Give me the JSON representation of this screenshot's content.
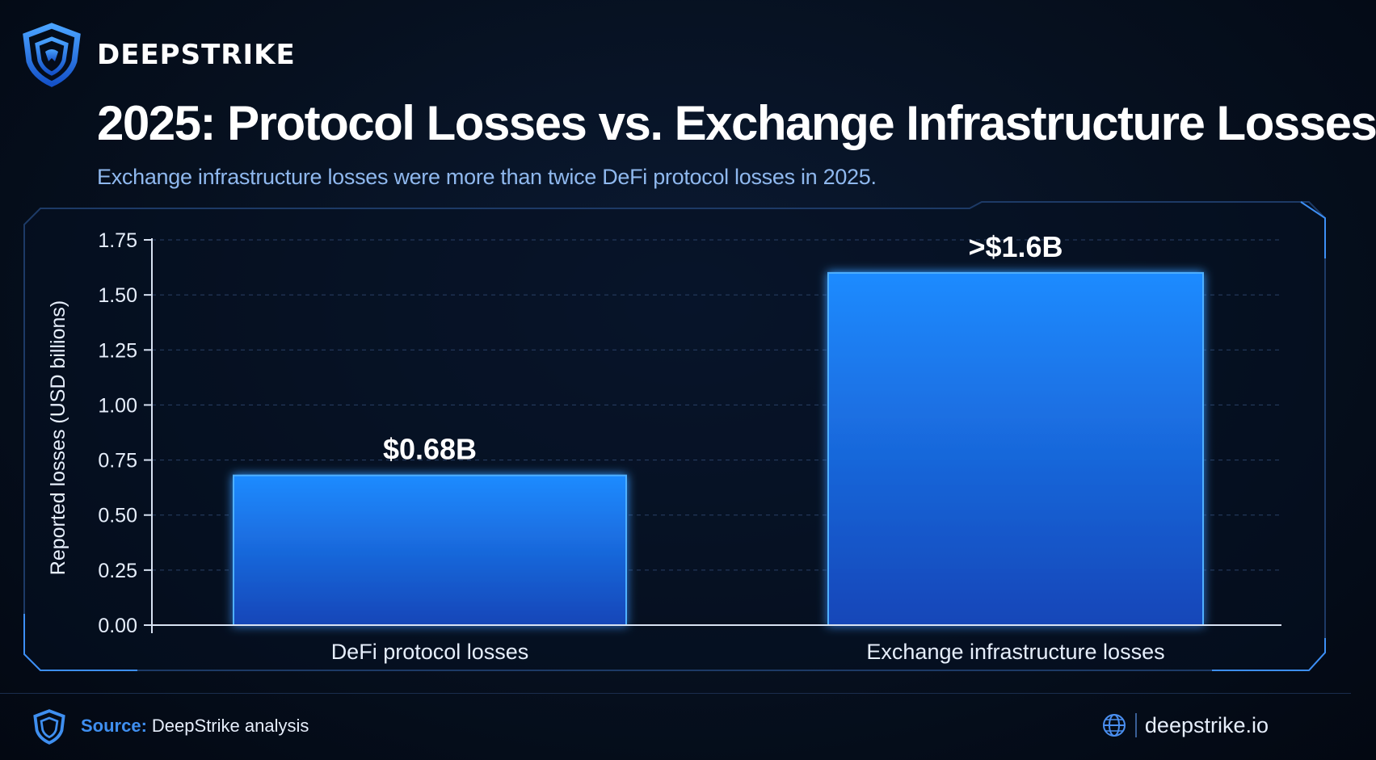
{
  "brand": {
    "name": "DEEPSTRIKE",
    "logo_icon": "shield-logo-icon"
  },
  "header": {
    "title": "2025: Protocol Losses vs. Exchange Infrastructure Losses",
    "subtitle": "Exchange infrastructure losses were more than twice DeFi protocol losses in 2025."
  },
  "chart_data": {
    "type": "bar",
    "categories": [
      "DeFi protocol losses",
      "Exchange infrastructure losses"
    ],
    "values": [
      0.68,
      1.6
    ],
    "data_labels": [
      "$0.68B",
      ">$1.6B"
    ],
    "title": "2025: Protocol Losses vs. Exchange Infrastructure Losses",
    "xlabel": "",
    "ylabel": "Reported losses (USD billions)",
    "ylim": [
      0,
      1.75
    ],
    "yticks": [
      "0.00",
      "0.25",
      "0.50",
      "0.75",
      "1.00",
      "1.25",
      "1.50",
      "1.75"
    ],
    "grid": true,
    "bar_color": "#1f86f5",
    "legend": "none"
  },
  "footer": {
    "source_label": "Source:",
    "source_text": "DeepStrike analysis",
    "website": "deepstrike.io",
    "website_icon": "globe-icon"
  },
  "colors": {
    "accent": "#3f8ff0",
    "background": "#06101f",
    "subtitle": "#8fb8ee"
  }
}
